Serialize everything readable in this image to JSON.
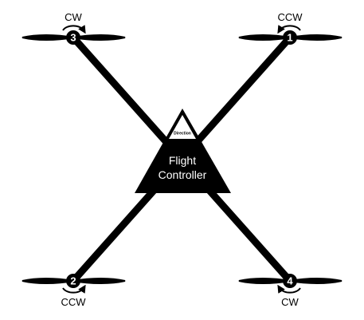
{
  "colors": {
    "frame": "#000000",
    "background": "#ffffff",
    "text_on_dark": "#ffffff"
  },
  "flight_controller": {
    "line1": "Flight",
    "line2": "Controller",
    "direction_label": "Direction"
  },
  "motors": [
    {
      "number": "3",
      "rotation": "CW"
    },
    {
      "number": "1",
      "rotation": "CCW"
    },
    {
      "number": "2",
      "rotation": "CCW"
    },
    {
      "number": "4",
      "rotation": "CW"
    }
  ]
}
